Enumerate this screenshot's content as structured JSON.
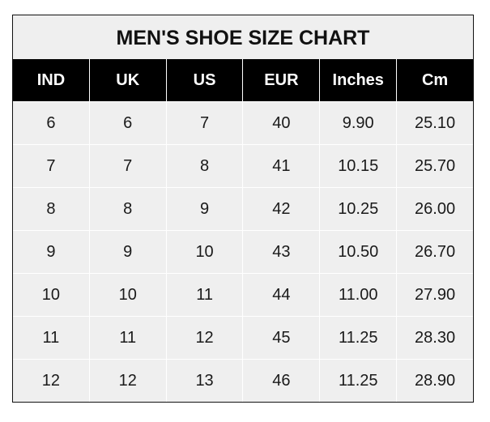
{
  "title": "MEN'S SHOE SIZE CHART",
  "columns": [
    "IND",
    "UK",
    "US",
    "EUR",
    "Inches",
    "Cm"
  ],
  "rows": [
    [
      "6",
      "6",
      "7",
      "40",
      "9.90",
      "25.10"
    ],
    [
      "7",
      "7",
      "8",
      "41",
      "10.15",
      "25.70"
    ],
    [
      "8",
      "8",
      "9",
      "42",
      "10.25",
      "26.00"
    ],
    [
      "9",
      "9",
      "10",
      "43",
      "10.50",
      "26.70"
    ],
    [
      "10",
      "10",
      "11",
      "44",
      "11.00",
      "27.90"
    ],
    [
      "11",
      "11",
      "12",
      "45",
      "11.25",
      "28.30"
    ],
    [
      "12",
      "12",
      "13",
      "46",
      "11.25",
      "28.90"
    ]
  ],
  "colors": {
    "header_bg": "#000000",
    "cell_bg": "#efefef",
    "grid": "#ffffff"
  }
}
